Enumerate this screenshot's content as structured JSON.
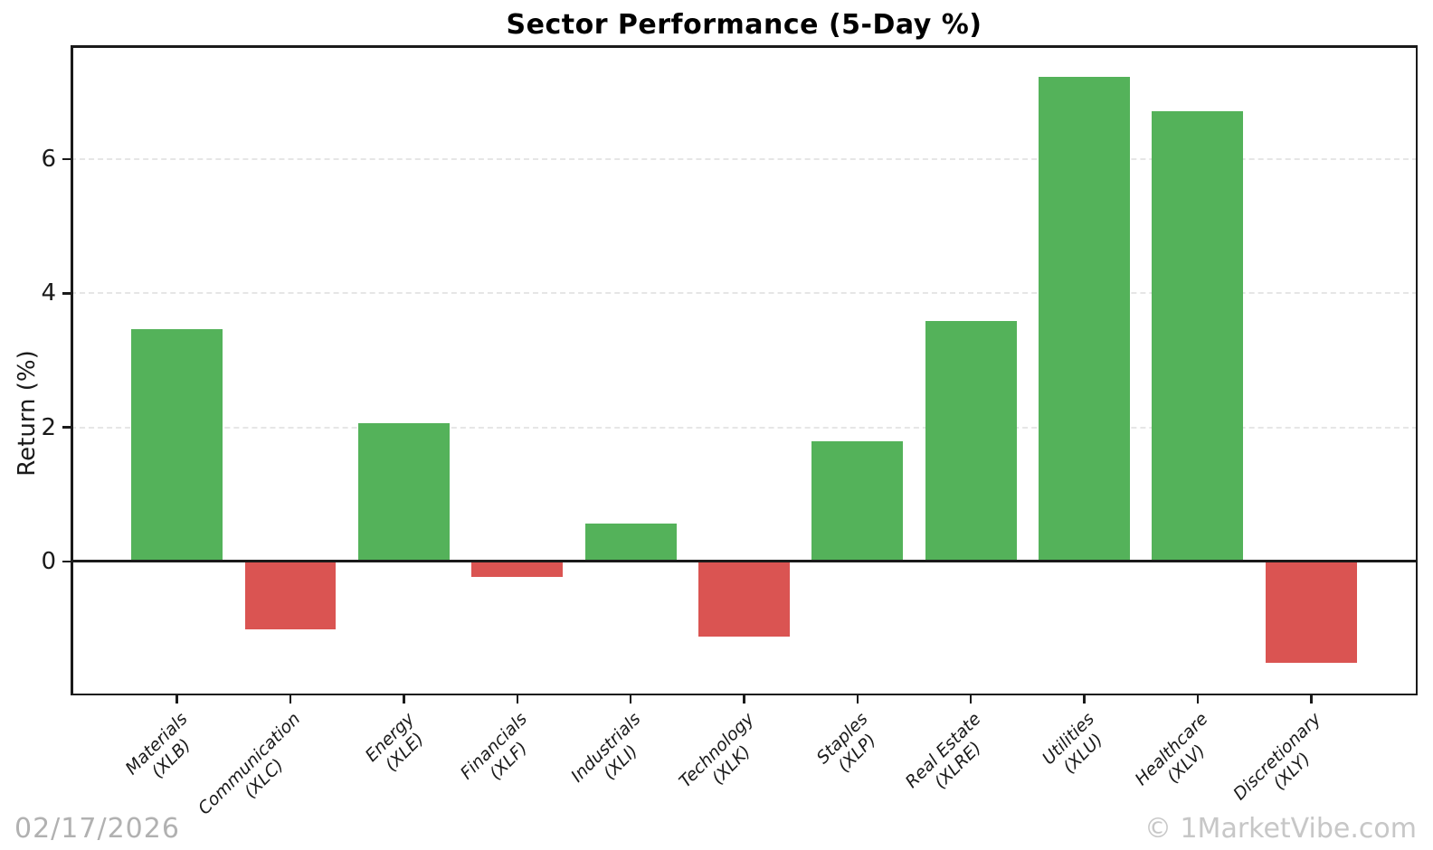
{
  "page": {
    "title": "Sector Performance (5-Day %)"
  },
  "chart_data": {
    "type": "bar",
    "title": "Sector Performance (5-Day %)",
    "xlabel": "",
    "ylabel": "Return (%)",
    "categories": [
      [
        "Materials",
        "(XLB)"
      ],
      [
        "Communication",
        "(XLC)"
      ],
      [
        "Energy",
        "(XLE)"
      ],
      [
        "Financials",
        "(XLF)"
      ],
      [
        "Industrials",
        "(XLI)"
      ],
      [
        "Technology",
        "(XLK)"
      ],
      [
        "Staples",
        "(XLP)"
      ],
      [
        "Real Estate",
        "(XLRE)"
      ],
      [
        "Utilities",
        "(XLU)"
      ],
      [
        "Healthcare",
        "(XLV)"
      ],
      [
        "Discretionary",
        "(XLY)"
      ]
    ],
    "values": [
      3.47,
      -1.01,
      2.06,
      -0.23,
      0.56,
      -1.12,
      1.79,
      3.58,
      7.23,
      6.71,
      -1.52
    ],
    "yticks": [
      0,
      2,
      4,
      6
    ],
    "ylim": [
      -2.0,
      7.7
    ],
    "grid": "horizontal-dashed",
    "legend": "none",
    "colors": {
      "positive": "#54b25a",
      "negative": "#da5452",
      "gridline": "#e6e6e6",
      "axis": "#1a1a1a"
    }
  },
  "footer": {
    "date": "02/17/2026",
    "watermark": "© 1MarketVibe.com"
  }
}
